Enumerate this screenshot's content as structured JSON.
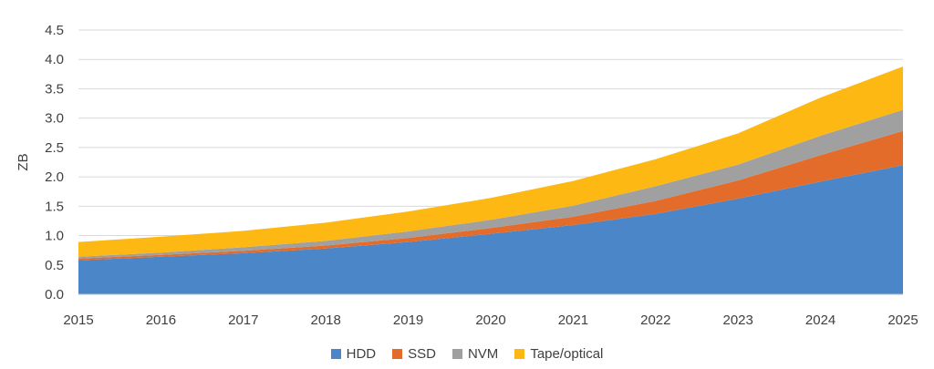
{
  "chart_data": {
    "type": "area",
    "stacked": true,
    "title": "",
    "xlabel": "",
    "ylabel": "ZB",
    "x": [
      "2015",
      "2016",
      "2017",
      "2018",
      "2019",
      "2020",
      "2021",
      "2022",
      "2023",
      "2024",
      "2025"
    ],
    "ylim": [
      0,
      4.5
    ],
    "yticks": [
      "0.0",
      "0.5",
      "1.0",
      "1.5",
      "2.0",
      "2.5",
      "3.0",
      "3.5",
      "4.0",
      "4.5"
    ],
    "grid": true,
    "legend_position": "bottom",
    "series": [
      {
        "name": "HDD",
        "color": "#4a86c8",
        "values": [
          0.58,
          0.64,
          0.7,
          0.78,
          0.89,
          1.03,
          1.18,
          1.37,
          1.63,
          1.92,
          2.2
        ]
      },
      {
        "name": "SSD",
        "color": "#e46c2a",
        "values": [
          0.03,
          0.03,
          0.04,
          0.05,
          0.07,
          0.1,
          0.14,
          0.22,
          0.31,
          0.45,
          0.58
        ]
      },
      {
        "name": "NVM",
        "color": "#a0a0a0",
        "values": [
          0.03,
          0.04,
          0.06,
          0.08,
          0.11,
          0.14,
          0.19,
          0.25,
          0.27,
          0.33,
          0.36
        ]
      },
      {
        "name": "Tape/optical",
        "color": "#fdb813",
        "values": [
          0.25,
          0.27,
          0.28,
          0.31,
          0.34,
          0.37,
          0.42,
          0.46,
          0.53,
          0.65,
          0.74
        ]
      }
    ]
  }
}
